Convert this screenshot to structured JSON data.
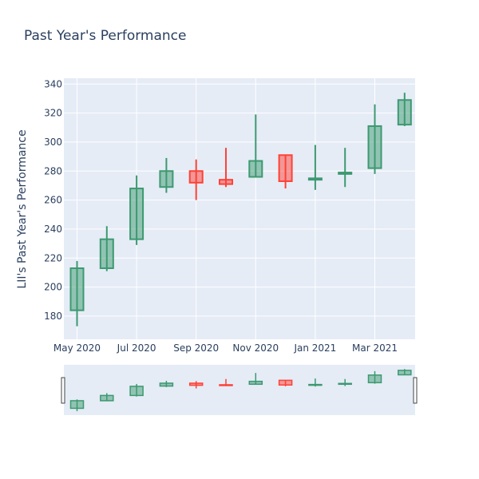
{
  "chart_data": {
    "type": "candlestick",
    "title": "Past Year's Performance",
    "xlabel": "",
    "ylabel": "LII's Past Year's Performance",
    "ylim": [
      164,
      344
    ],
    "yticks": [
      180,
      200,
      220,
      240,
      260,
      280,
      300,
      320,
      340
    ],
    "xtick_labels": [
      "May 2020",
      "Jul 2020",
      "Sep 2020",
      "Nov 2020",
      "Jan 2021",
      "Mar 2021"
    ],
    "grid": true,
    "rangeslider": true,
    "increasing_color": "#3d9970",
    "decreasing_color": "#ff4136",
    "plot_bg": "#e5ecf6",
    "candles": [
      {
        "period": "May 2020",
        "open": 184,
        "high": 218,
        "low": 173,
        "close": 213
      },
      {
        "period": "Jun 2020",
        "open": 213,
        "high": 242,
        "low": 211,
        "close": 233
      },
      {
        "period": "Jul 2020",
        "open": 233,
        "high": 277,
        "low": 229,
        "close": 268
      },
      {
        "period": "Aug 2020",
        "open": 269,
        "high": 289,
        "low": 265,
        "close": 280
      },
      {
        "period": "Sep 2020",
        "open": 280,
        "high": 288,
        "low": 260,
        "close": 272
      },
      {
        "period": "Oct 2020",
        "open": 274,
        "high": 296,
        "low": 269,
        "close": 271
      },
      {
        "period": "Nov 2020",
        "open": 276,
        "high": 319,
        "low": 276,
        "close": 287
      },
      {
        "period": "Dec 2020",
        "open": 291,
        "high": 291,
        "low": 268,
        "close": 273
      },
      {
        "period": "Jan 2021",
        "open": 274,
        "high": 298,
        "low": 267,
        "close": 275
      },
      {
        "period": "Feb 2021",
        "open": 278,
        "high": 296,
        "low": 269,
        "close": 279
      },
      {
        "period": "Mar 2021",
        "open": 282,
        "high": 326,
        "low": 278,
        "close": 311
      },
      {
        "period": "Apr 2021",
        "open": 312,
        "high": 334,
        "low": 311,
        "close": 329
      }
    ]
  }
}
